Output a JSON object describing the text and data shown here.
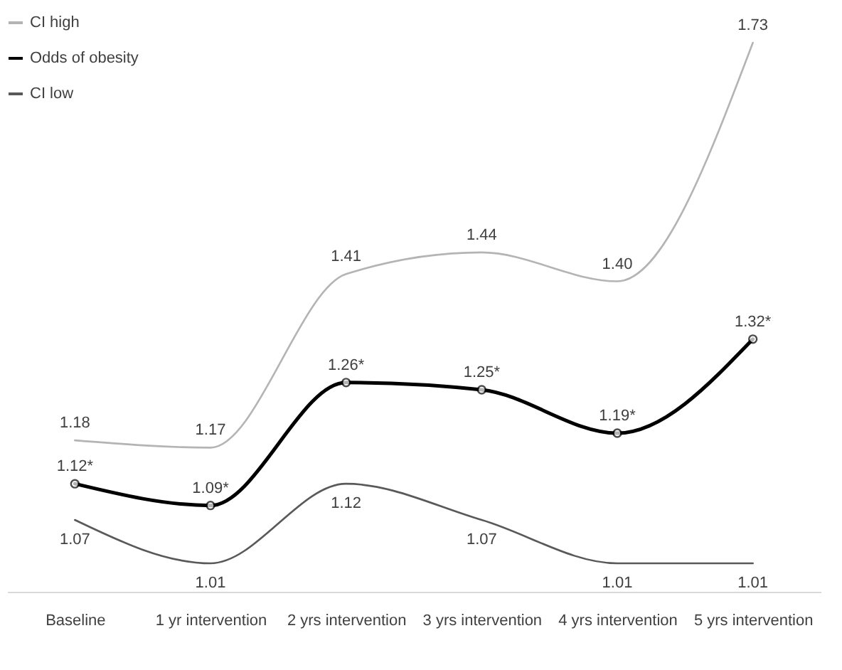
{
  "chart_data": {
    "type": "line",
    "categories": [
      "Baseline",
      "1 yr intervention",
      "2 yrs intervention",
      "3 yrs intervention",
      "4 yrs intervention",
      "5 yrs intervention"
    ],
    "series": [
      {
        "name": "CI high",
        "color": "#b4b4b4",
        "values": [
          1.18,
          1.17,
          1.41,
          1.44,
          1.4,
          1.73
        ],
        "value_labels": [
          "1.18",
          "1.17",
          "1.41",
          "1.44",
          "1.40",
          "1.73"
        ]
      },
      {
        "name": "Odds of obesity",
        "color": "#000000",
        "marker": "circle",
        "values": [
          1.12,
          1.09,
          1.26,
          1.25,
          1.19,
          1.32
        ],
        "value_labels": [
          "1.12*",
          "1.09*",
          "1.26*",
          "1.25*",
          "1.19*",
          "1.32*"
        ]
      },
      {
        "name": "CI low",
        "color": "#595959",
        "values": [
          1.07,
          1.01,
          1.12,
          1.07,
          1.01,
          1.01
        ],
        "value_labels": [
          "1.07",
          "1.01",
          "1.12",
          "1.07",
          "1.01",
          "1.01"
        ]
      }
    ],
    "legend": "top left",
    "tick_labels": "x",
    "grid": false
  }
}
